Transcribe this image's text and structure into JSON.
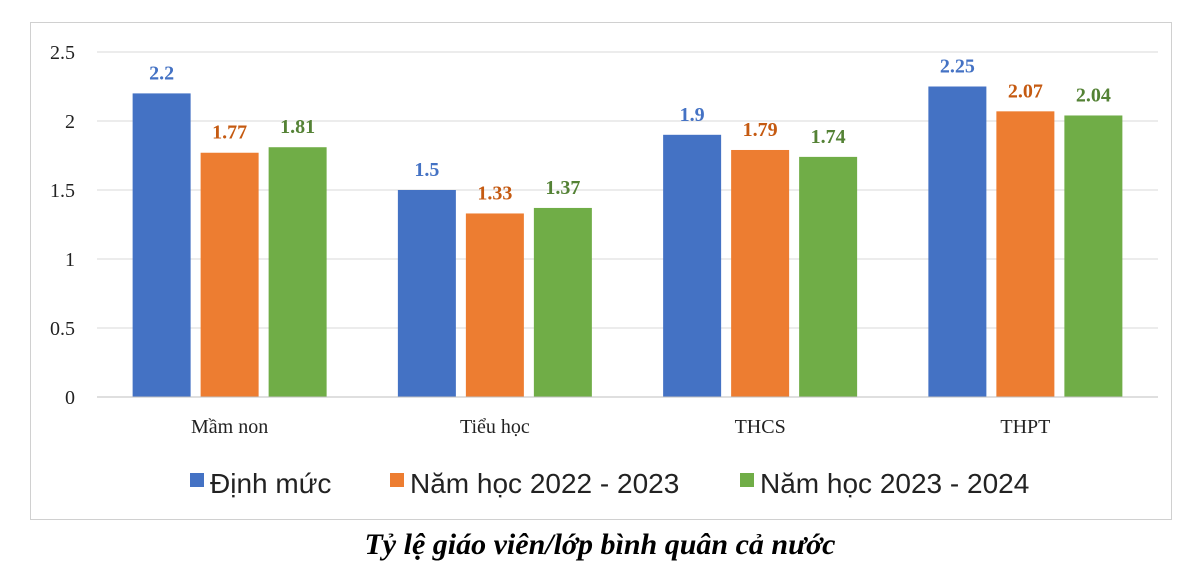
{
  "caption": "Tỷ lệ giáo viên/lớp bình quân cả nước",
  "chart_data": {
    "type": "bar",
    "categories": [
      "Mầm non",
      "Tiểu học",
      "THCS",
      "THPT"
    ],
    "series": [
      {
        "name": "Định mức",
        "color": "#4472C4",
        "label_color": "#4472C4",
        "values": [
          2.2,
          1.5,
          1.9,
          2.25
        ]
      },
      {
        "name": "Năm học 2022 - 2023",
        "color": "#ED7D31",
        "label_color": "#C55A11",
        "values": [
          1.77,
          1.33,
          1.79,
          2.07
        ]
      },
      {
        "name": "Năm học 2023 - 2024",
        "color": "#70AD47",
        "label_color": "#548235",
        "values": [
          1.81,
          1.37,
          1.74,
          2.04
        ]
      }
    ],
    "ylim": [
      0,
      2.5
    ],
    "yticks": [
      "0",
      "0.5",
      "1",
      "1.5",
      "2",
      "2.5"
    ],
    "grid": true,
    "legend_position": "bottom"
  }
}
